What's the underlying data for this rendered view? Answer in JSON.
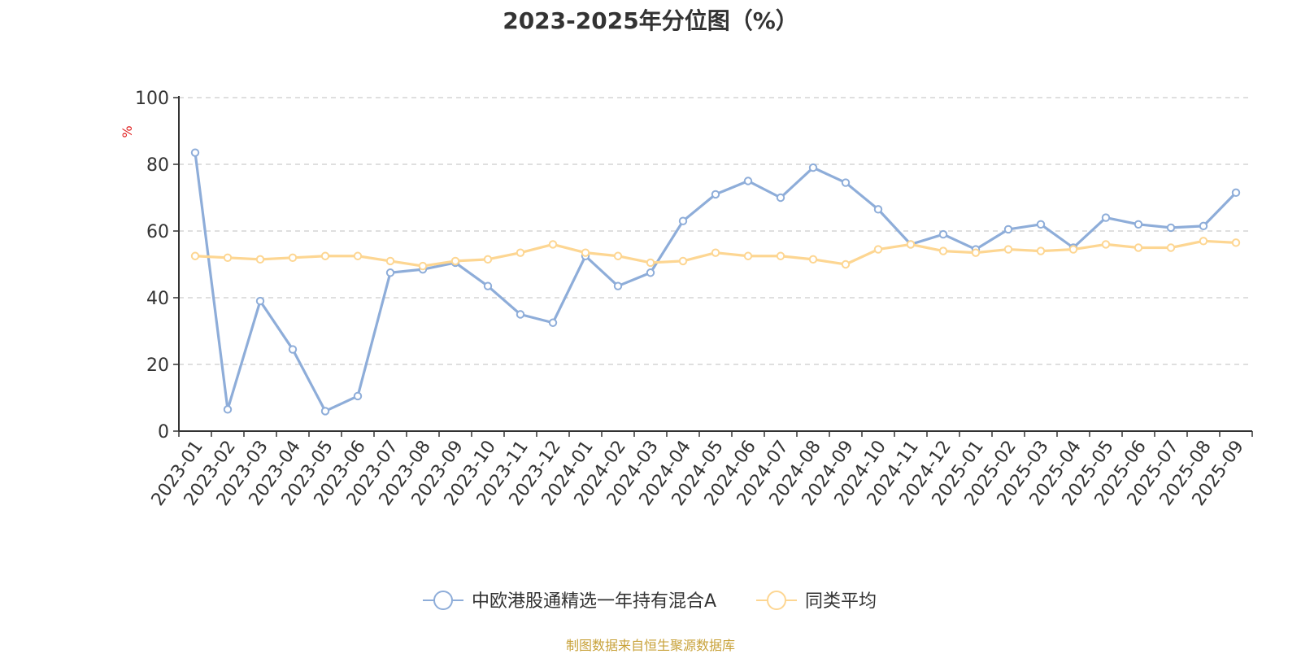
{
  "chart_data": {
    "type": "line",
    "title": "2023-2025年分位图（%）",
    "ylabel": "%",
    "xlabel": "",
    "ylim": [
      0,
      100
    ],
    "yticks": [
      0,
      20,
      40,
      60,
      80,
      100
    ],
    "grid": true,
    "legend_position": "bottom",
    "categories": [
      "2023-01",
      "2023-02",
      "2023-03",
      "2023-04",
      "2023-05",
      "2023-06",
      "2023-07",
      "2023-08",
      "2023-09",
      "2023-10",
      "2023-11",
      "2023-12",
      "2024-01",
      "2024-02",
      "2024-03",
      "2024-04",
      "2024-05",
      "2024-06",
      "2024-07",
      "2024-08",
      "2024-09",
      "2024-10",
      "2024-11",
      "2024-12",
      "2025-01",
      "2025-02",
      "2025-03",
      "2025-04",
      "2025-05",
      "2025-06",
      "2025-07",
      "2025-08",
      "2025-09"
    ],
    "series": [
      {
        "name": "中欧港股通精选一年持有混合A",
        "color": "#8eadd9",
        "values": [
          83.5,
          6.5,
          39,
          24.5,
          6,
          10.5,
          47.5,
          48.5,
          50.5,
          43.5,
          35,
          32.5,
          52.5,
          43.5,
          47.5,
          63,
          71,
          75,
          70,
          79,
          74.5,
          66.5,
          56,
          59,
          54.5,
          60.5,
          62,
          55,
          64,
          62,
          61,
          61.5,
          71.5
        ]
      },
      {
        "name": "同类平均",
        "color": "#fdd692",
        "values": [
          52.5,
          52,
          51.5,
          52,
          52.5,
          52.5,
          51,
          49.5,
          51,
          51.5,
          53.5,
          56,
          53.5,
          52.5,
          50.5,
          51,
          53.5,
          52.5,
          52.5,
          51.5,
          50,
          54.5,
          56,
          54,
          53.5,
          54.5,
          54,
          54.5,
          56,
          55,
          55,
          57,
          56.5
        ]
      }
    ]
  },
  "footer": {
    "source": "制图数据来自恒生聚源数据库"
  }
}
